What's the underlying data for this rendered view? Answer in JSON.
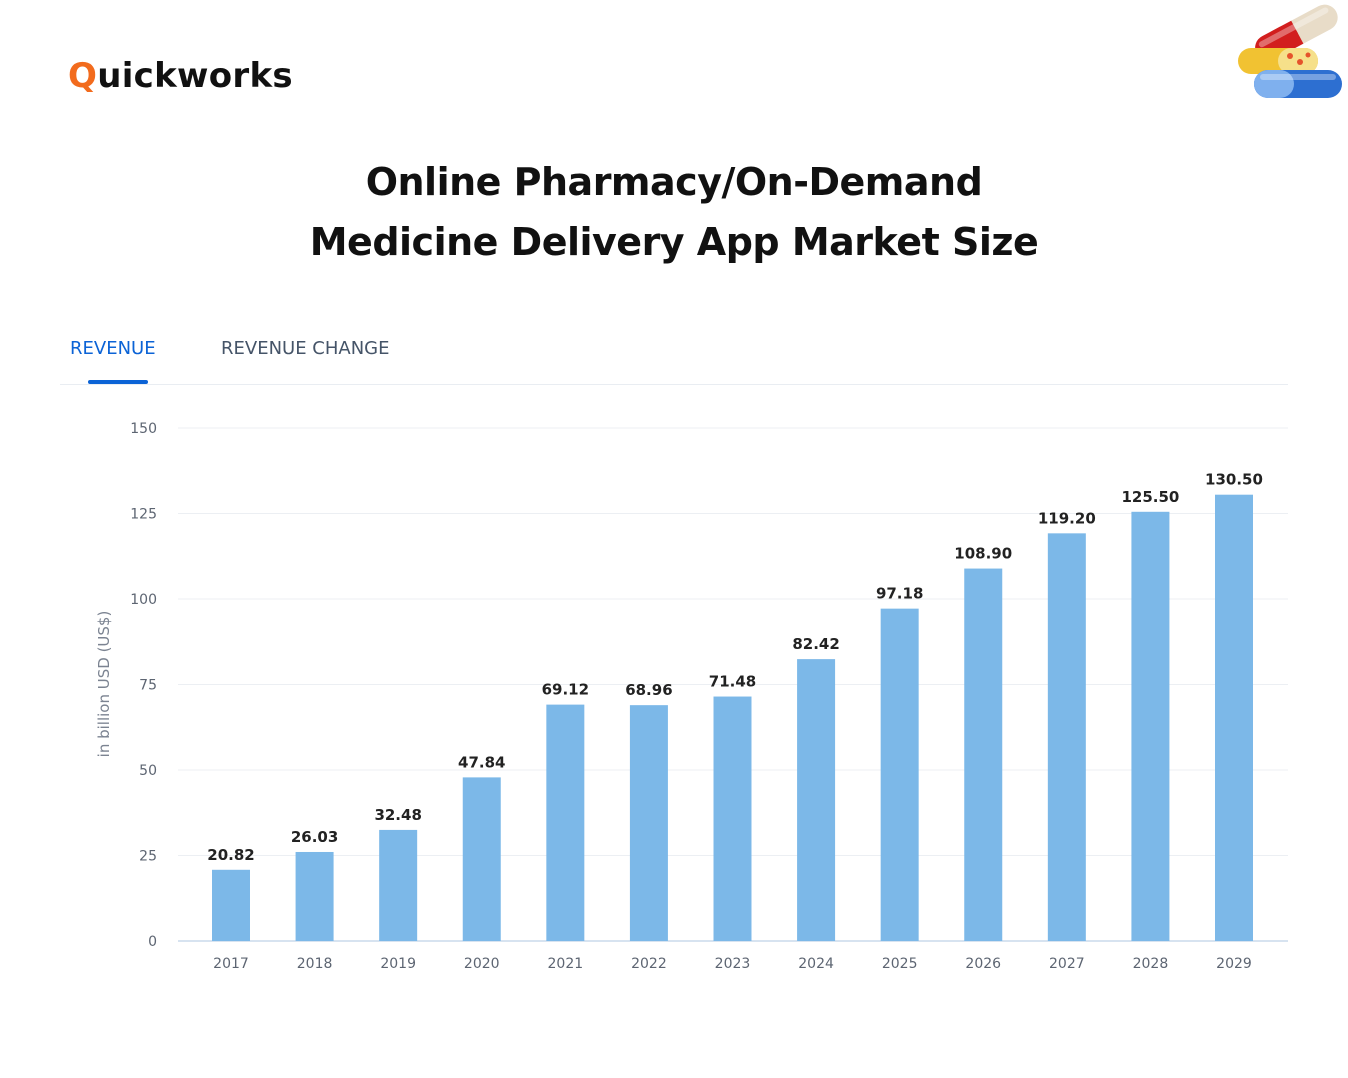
{
  "brand": {
    "logo_first": "Q",
    "logo_rest": "uickworks",
    "accent": "#f26b1d"
  },
  "header": {
    "title_line1": "Online Pharmacy/On-Demand",
    "title_line2": "Medicine Delivery App Market Size"
  },
  "tabs": [
    {
      "label": "REVENUE",
      "active": true
    },
    {
      "label": "REVENUE CHANGE",
      "active": false
    }
  ],
  "chart_data": {
    "type": "bar",
    "categories": [
      "2017",
      "2018",
      "2019",
      "2020",
      "2021",
      "2022",
      "2023",
      "2024",
      "2025",
      "2026",
      "2027",
      "2028",
      "2029"
    ],
    "values": [
      20.82,
      26.03,
      32.48,
      47.84,
      69.12,
      68.96,
      71.48,
      82.42,
      97.18,
      108.9,
      119.2,
      125.5,
      130.5
    ],
    "data_labels": [
      "20.82",
      "26.03",
      "32.48",
      "47.84",
      "69.12",
      "68.96",
      "71.48",
      "82.42",
      "97.18",
      "108.90",
      "119.20",
      "125.50",
      "130.50"
    ],
    "ylabel": "in billion USD (US$)",
    "ylim": [
      0,
      150
    ],
    "yticks": [
      0,
      25,
      50,
      75,
      100,
      125,
      150
    ],
    "grid": true,
    "bar_color": "#7cb8e8"
  },
  "colors": {
    "tab_active": "#0b63d6",
    "tab_inactive": "#455468"
  }
}
